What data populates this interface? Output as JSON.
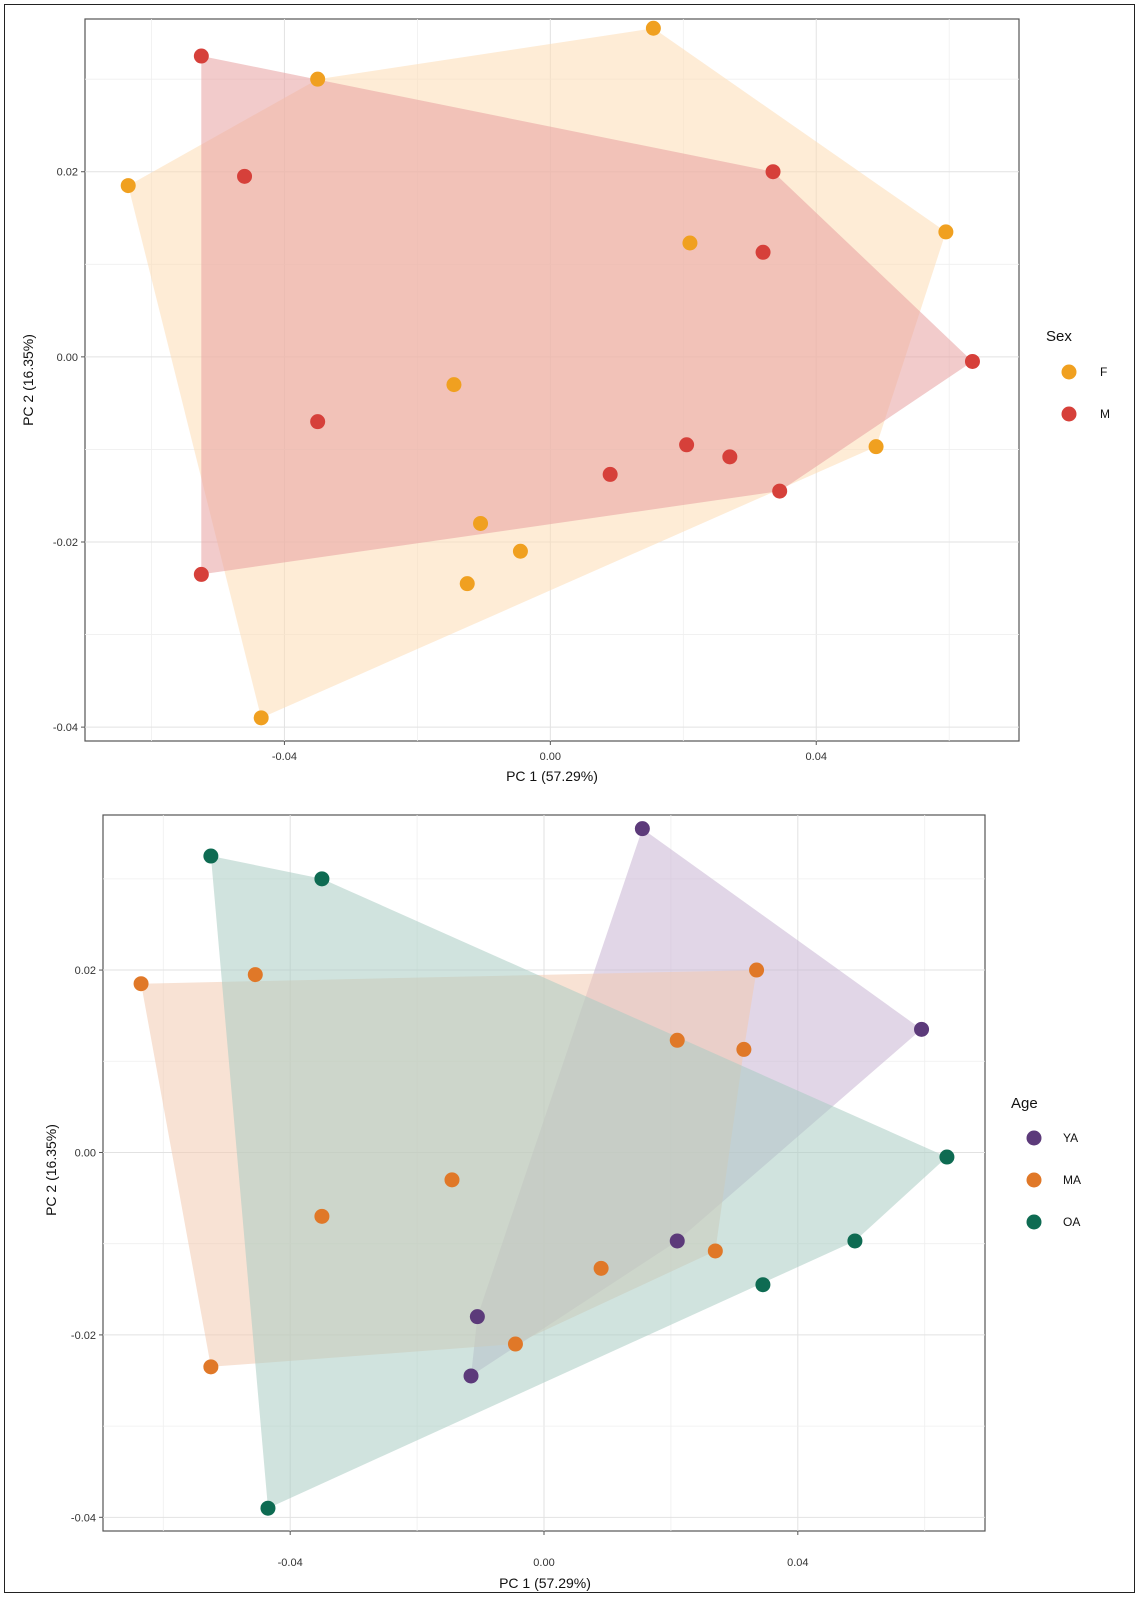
{
  "chart_data": [
    {
      "type": "scatter",
      "id": "sex",
      "xlabel": "PC 1 (57.29%)",
      "ylabel": "PC 2 (16.35%)",
      "xlim": [
        -0.07,
        0.0705
      ],
      "ylim": [
        -0.0415,
        0.0365
      ],
      "xticks": [
        -0.04,
        0.0,
        0.04
      ],
      "xtick_labels": [
        "-0.04",
        "0.00",
        "0.04"
      ],
      "yticks": [
        -0.04,
        -0.02,
        0.0,
        0.02
      ],
      "ytick_labels": [
        "-0.04",
        "-0.02",
        "0.00",
        "0.02"
      ],
      "grid": true,
      "legend": {
        "title": "Sex",
        "position": "right"
      },
      "series": [
        {
          "name": "F",
          "color": "#F0A020",
          "hull_color": "#FDDCB5",
          "points": [
            [
              -0.0635,
              0.0185
            ],
            [
              -0.035,
              0.03
            ],
            [
              0.0155,
              0.0355
            ],
            [
              0.0595,
              0.0135
            ],
            [
              0.049,
              -0.0097
            ],
            [
              -0.0435,
              -0.039
            ],
            [
              -0.0145,
              -0.003
            ],
            [
              0.021,
              0.0123
            ],
            [
              -0.0105,
              -0.018
            ],
            [
              -0.0045,
              -0.021
            ],
            [
              -0.0125,
              -0.0245
            ]
          ],
          "hull": [
            [
              -0.0635,
              0.0185
            ],
            [
              -0.035,
              0.03
            ],
            [
              0.0155,
              0.0355
            ],
            [
              0.0595,
              0.0135
            ],
            [
              0.049,
              -0.0097
            ],
            [
              -0.0435,
              -0.039
            ]
          ]
        },
        {
          "name": "M",
          "color": "#D6403A",
          "hull_color": "#E8A0A0",
          "points": [
            [
              -0.0525,
              0.0325
            ],
            [
              -0.046,
              0.0195
            ],
            [
              0.0335,
              0.02
            ],
            [
              0.032,
              0.0113
            ],
            [
              0.0635,
              -0.0005
            ],
            [
              -0.035,
              -0.007
            ],
            [
              0.009,
              -0.0127
            ],
            [
              0.0205,
              -0.0095
            ],
            [
              0.027,
              -0.0108
            ],
            [
              0.0345,
              -0.0145
            ],
            [
              -0.0525,
              -0.0235
            ]
          ],
          "hull": [
            [
              -0.0525,
              0.0325
            ],
            [
              0.0335,
              0.02
            ],
            [
              0.0635,
              -0.0005
            ],
            [
              0.0345,
              -0.0145
            ],
            [
              -0.0525,
              -0.0235
            ]
          ]
        }
      ]
    },
    {
      "type": "scatter",
      "id": "age",
      "xlabel": "PC 1 (57.29%)",
      "ylabel": "PC 2 (16.35%)",
      "xlim": [
        -0.0695,
        0.0695
      ],
      "ylim": [
        -0.0415,
        0.037
      ],
      "xticks": [
        -0.04,
        0.0,
        0.04
      ],
      "xtick_labels": [
        "-0.04",
        "0.00",
        "0.04"
      ],
      "yticks": [
        -0.04,
        -0.02,
        0.0,
        0.02
      ],
      "ytick_labels": [
        "-0.04",
        "-0.02",
        "0.00",
        "0.02"
      ],
      "grid": true,
      "legend": {
        "title": "Age",
        "position": "right"
      },
      "series": [
        {
          "name": "YA",
          "color": "#5C3A7A",
          "hull_color": "#C9B4D4",
          "points": [
            [
              0.0155,
              0.0355
            ],
            [
              0.0595,
              0.0135
            ],
            [
              0.021,
              -0.0097
            ],
            [
              -0.0105,
              -0.018
            ],
            [
              -0.0115,
              -0.0245
            ]
          ],
          "hull": [
            [
              0.0155,
              0.0355
            ],
            [
              0.0595,
              0.0135
            ],
            [
              0.021,
              -0.0097
            ],
            [
              -0.0115,
              -0.0245
            ],
            [
              -0.0105,
              -0.018
            ]
          ]
        },
        {
          "name": "MA",
          "color": "#E07828",
          "hull_color": "#F3CBB0",
          "points": [
            [
              -0.0635,
              0.0185
            ],
            [
              -0.0455,
              0.0195
            ],
            [
              0.0335,
              0.02
            ],
            [
              0.021,
              0.0123
            ],
            [
              0.0315,
              0.0113
            ],
            [
              -0.0145,
              -0.003
            ],
            [
              -0.035,
              -0.007
            ],
            [
              0.009,
              -0.0127
            ],
            [
              0.027,
              -0.0108
            ],
            [
              -0.0045,
              -0.021
            ],
            [
              -0.0525,
              -0.0235
            ]
          ],
          "hull": [
            [
              -0.0635,
              0.0185
            ],
            [
              0.0335,
              0.02
            ],
            [
              0.0315,
              0.0113
            ],
            [
              0.027,
              -0.0108
            ],
            [
              -0.0045,
              -0.021
            ],
            [
              -0.0525,
              -0.0235
            ]
          ]
        },
        {
          "name": "OA",
          "color": "#0E6B52",
          "hull_color": "#A9CCC3",
          "points": [
            [
              -0.0525,
              0.0325
            ],
            [
              -0.035,
              0.03
            ],
            [
              0.0635,
              -0.0005
            ],
            [
              0.049,
              -0.0097
            ],
            [
              0.0345,
              -0.0145
            ],
            [
              -0.0435,
              -0.039
            ]
          ],
          "hull": [
            [
              -0.0525,
              0.0325
            ],
            [
              -0.035,
              0.03
            ],
            [
              0.0635,
              -0.0005
            ],
            [
              0.049,
              -0.0097
            ],
            [
              -0.0435,
              -0.039
            ]
          ]
        }
      ]
    }
  ]
}
